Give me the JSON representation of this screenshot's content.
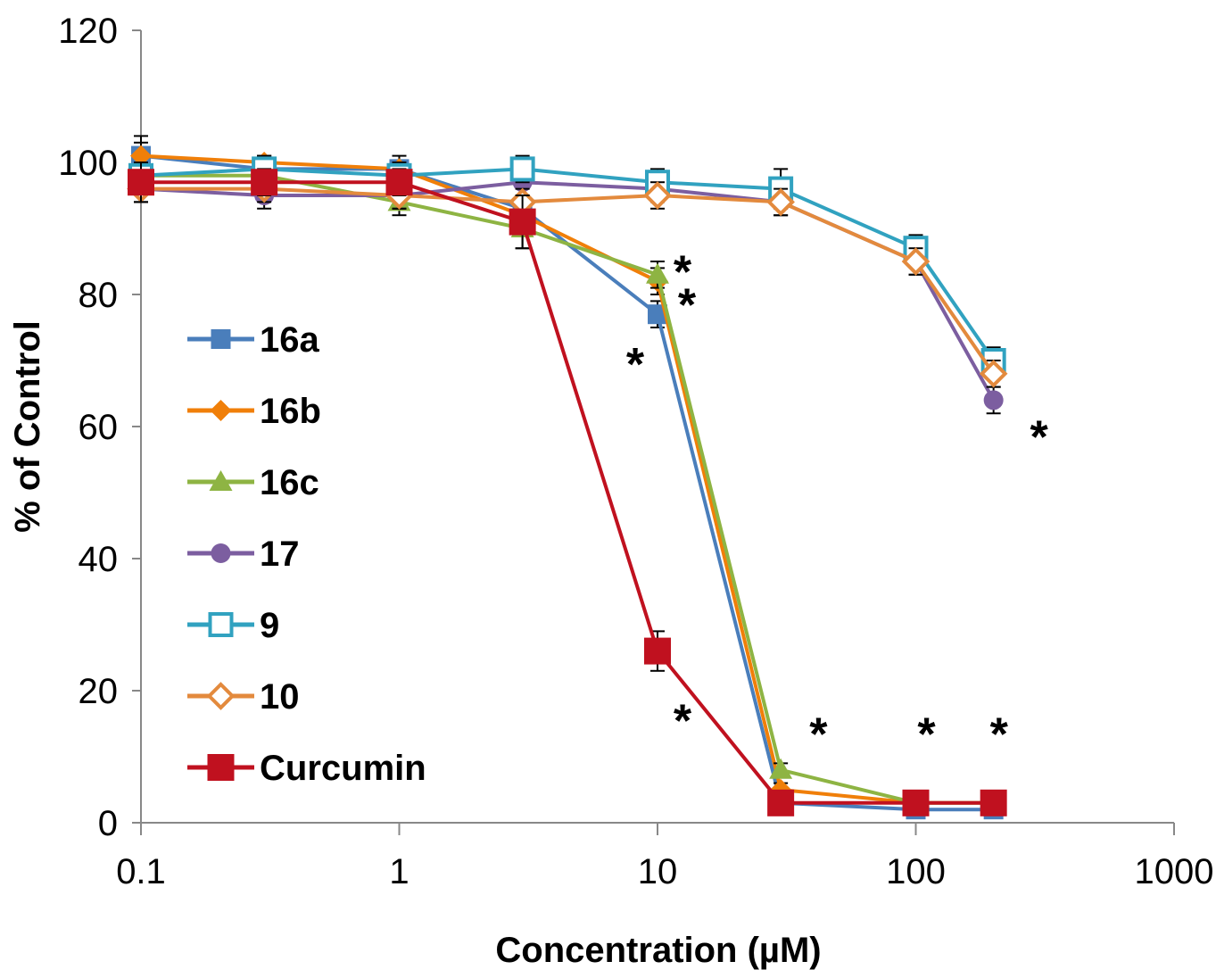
{
  "chart_data": {
    "type": "line",
    "xscale": "log",
    "xlabel": "Concentration (µM)",
    "ylabel": "% of Control",
    "xlim": [
      0.1,
      1000
    ],
    "ylim": [
      0,
      120
    ],
    "xticks": [
      0.1,
      1,
      10,
      100,
      1000
    ],
    "xtick_labels": [
      "0.1",
      "1",
      "10",
      "100",
      "1000"
    ],
    "yticks": [
      0,
      20,
      40,
      60,
      80,
      100,
      120
    ],
    "ytick_labels": [
      "0",
      "20",
      "40",
      "60",
      "80",
      "100",
      "120"
    ],
    "grid": false,
    "legend": "left",
    "x": [
      0.1,
      0.3,
      1,
      3,
      10,
      30,
      100,
      200
    ],
    "series": [
      {
        "name": "16a",
        "color": "#4a7ebb",
        "marker": "square",
        "values": [
          101,
          99,
          99,
          93,
          77,
          3,
          2,
          2
        ],
        "errors": [
          3,
          2,
          2,
          2,
          2,
          1,
          1,
          1
        ]
      },
      {
        "name": "16b",
        "color": "#f07f09",
        "marker": "diamond",
        "values": [
          101,
          100,
          99,
          92,
          82,
          5,
          3,
          3
        ],
        "errors": [
          2,
          1,
          1,
          2,
          2,
          1,
          1,
          1
        ]
      },
      {
        "name": "16c",
        "color": "#8eb443",
        "marker": "triangle",
        "values": [
          98,
          98,
          94,
          90,
          83,
          8,
          3,
          3
        ],
        "errors": [
          2,
          2,
          2,
          3,
          2,
          1,
          1,
          1
        ]
      },
      {
        "name": "17",
        "color": "#7c5ea0",
        "marker": "circle",
        "values": [
          96,
          95,
          95,
          97,
          96,
          94,
          85,
          64
        ],
        "errors": [
          2,
          2,
          2,
          2,
          2,
          2,
          2,
          2
        ]
      },
      {
        "name": "9",
        "color": "#31a2c0",
        "marker": "open-square",
        "values": [
          98,
          99,
          98,
          99,
          97,
          96,
          87,
          70
        ],
        "errors": [
          2,
          2,
          2,
          2,
          2,
          3,
          2,
          2
        ]
      },
      {
        "name": "10",
        "color": "#e38a3d",
        "marker": "open-diamond",
        "values": [
          96,
          96,
          95,
          94,
          95,
          94,
          85,
          68
        ],
        "errors": [
          2,
          2,
          2,
          2,
          2,
          2,
          2,
          2
        ]
      },
      {
        "name": "Curcumin",
        "color": "#c0111f",
        "marker": "big-square",
        "values": [
          97,
          97,
          97,
          91,
          26,
          3,
          3,
          3
        ],
        "errors": [
          3,
          2,
          2,
          4,
          3,
          1,
          1,
          1
        ]
      }
    ],
    "annotations": [
      {
        "text": "*",
        "x": 12.5,
        "y": 84
      },
      {
        "text": "*",
        "x": 13,
        "y": 79
      },
      {
        "text": "*",
        "x": 8.2,
        "y": 70
      },
      {
        "text": "*",
        "x": 12.5,
        "y": 16
      },
      {
        "text": "*",
        "x": 42,
        "y": 14
      },
      {
        "text": "*",
        "x": 110,
        "y": 14
      },
      {
        "text": "*",
        "x": 210,
        "y": 14
      },
      {
        "text": "*",
        "x": 300,
        "y": 59
      }
    ]
  }
}
